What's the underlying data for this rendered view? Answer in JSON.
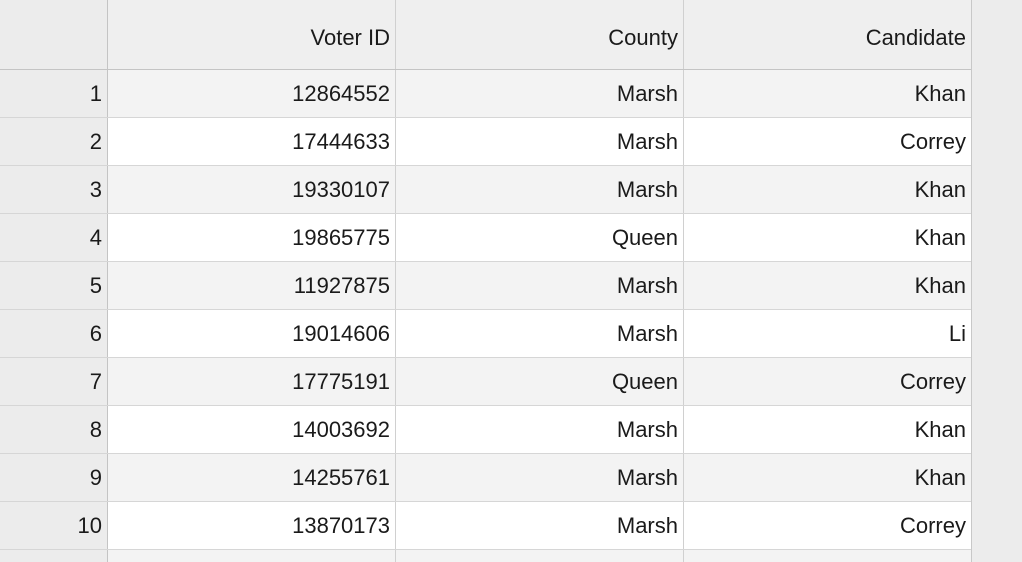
{
  "table": {
    "columns": [
      "",
      "Voter ID",
      "County",
      "Candidate"
    ],
    "rows": [
      {
        "index": "1",
        "voter_id": "12864552",
        "county": "Marsh",
        "candidate": "Khan"
      },
      {
        "index": "2",
        "voter_id": "17444633",
        "county": "Marsh",
        "candidate": "Correy"
      },
      {
        "index": "3",
        "voter_id": "19330107",
        "county": "Marsh",
        "candidate": "Khan"
      },
      {
        "index": "4",
        "voter_id": "19865775",
        "county": "Queen",
        "candidate": "Khan"
      },
      {
        "index": "5",
        "voter_id": "11927875",
        "county": "Marsh",
        "candidate": "Khan"
      },
      {
        "index": "6",
        "voter_id": "19014606",
        "county": "Marsh",
        "candidate": "Li"
      },
      {
        "index": "7",
        "voter_id": "17775191",
        "county": "Queen",
        "candidate": "Correy"
      },
      {
        "index": "8",
        "voter_id": "14003692",
        "county": "Marsh",
        "candidate": "Khan"
      },
      {
        "index": "9",
        "voter_id": "14255761",
        "county": "Marsh",
        "candidate": "Khan"
      },
      {
        "index": "10",
        "voter_id": "13870173",
        "county": "Marsh",
        "candidate": "Correy"
      }
    ]
  }
}
